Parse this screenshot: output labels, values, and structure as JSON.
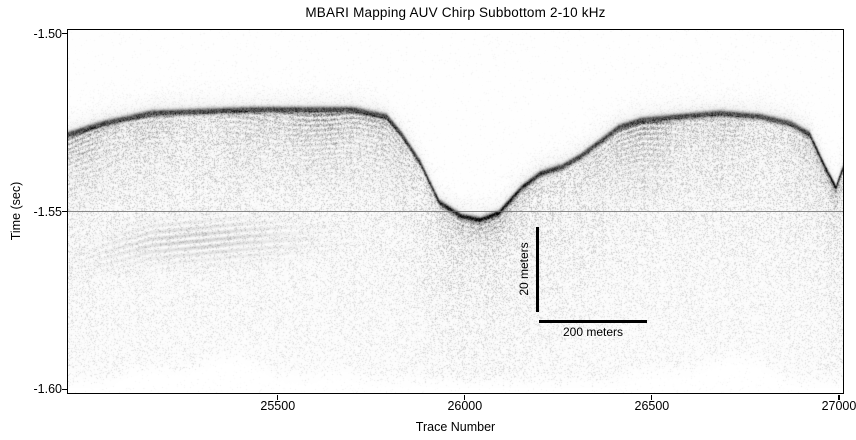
{
  "title": "MBARI Mapping AUV Chirp Subbottom 2-10 kHz",
  "axes": {
    "x": {
      "label": "Trace Number",
      "range": [
        24940,
        27010
      ],
      "ticks": [
        {
          "value": 25500,
          "label": "25500"
        },
        {
          "value": 26000,
          "label": "26000"
        },
        {
          "value": 26500,
          "label": "26500"
        },
        {
          "value": 27000,
          "label": "27000"
        }
      ]
    },
    "y": {
      "label": "Time (sec)",
      "range_sec": [
        -1.499,
        -1.601
      ],
      "ticks": [
        {
          "value": -1.5,
          "label": "-1.50"
        },
        {
          "value": -1.55,
          "label": "-1.55"
        },
        {
          "value": -1.6,
          "label": "-1.60"
        }
      ],
      "gridline_at": -1.55
    }
  },
  "scale_bar": {
    "vertical_label": "20 meters",
    "horizontal_label": "200 meters"
  },
  "colors": {
    "ink": "#000000",
    "gridline": "#696969",
    "background": "#ffffff"
  },
  "chart_data": {
    "type": "heatmap",
    "title": "MBARI Mapping AUV Chirp Subbottom 2-10 kHz",
    "xlabel": "Trace Number",
    "ylabel": "Time (sec)",
    "x_range": [
      24940,
      27010
    ],
    "time_range_sec": [
      -1.499,
      -1.601
    ],
    "x_ticks": [
      25500,
      26000,
      26500,
      27000
    ],
    "y_ticks": [
      -1.5,
      -1.55,
      -1.6
    ],
    "gridline_time_sec": -1.55,
    "colormap": "grayscale, dark = strong acoustic reflection",
    "description": "Chirp subbottom sonar profile: flat-lying layered sediment terraces at ~-1.521 s incised by two channels; diffuse acoustic penetration fading by ~-1.595 s.",
    "seafloor_profile": {
      "trace": [
        24940,
        25030,
        25160,
        25430,
        25700,
        25790,
        25830,
        25880,
        25930,
        25990,
        26040,
        26090,
        26150,
        26200,
        26260,
        26310,
        26360,
        26410,
        26470,
        26570,
        26680,
        26790,
        26870,
        26920,
        26960,
        26990,
        27010
      ],
      "time_sec": [
        -1.528,
        -1.525,
        -1.522,
        -1.521,
        -1.521,
        -1.523,
        -1.528,
        -1.536,
        -1.547,
        -1.551,
        -1.552,
        -1.55,
        -1.543,
        -1.539,
        -1.537,
        -1.534,
        -1.53,
        -1.526,
        -1.524,
        -1.523,
        -1.522,
        -1.523,
        -1.525,
        -1.528,
        -1.537,
        -1.543,
        -1.537
      ]
    },
    "features": {
      "channels": [
        {
          "center_trace": 26060,
          "width_traces": 260,
          "floor_time_sec": -1.552
        },
        {
          "center_trace": 26975,
          "width_traces": 90,
          "floor_time_sec": -1.544
        }
      ],
      "layered_reflectors_thickness_sec": 0.02,
      "acoustic_penetration_bottom_time_sec": -1.595
    },
    "scale_bar": {
      "vertical": "20 meters",
      "horizontal": "200 meters"
    },
    "legend": null
  }
}
